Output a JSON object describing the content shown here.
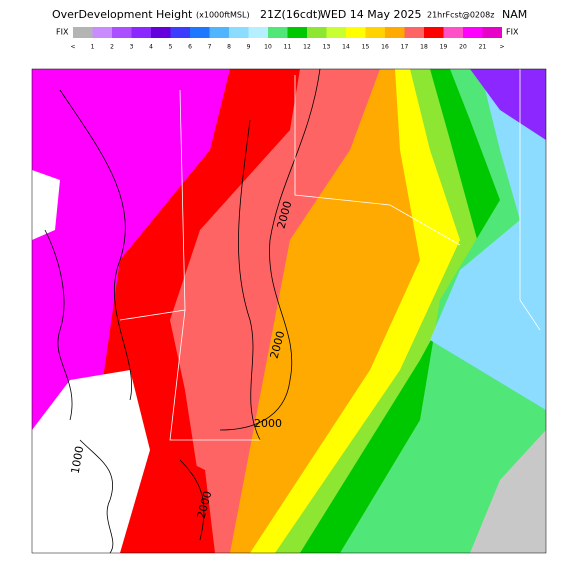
{
  "header": {
    "title": "OverDevelopment Height",
    "units": "(x1000ftMSL)",
    "valid": "21Z(16cdt)",
    "date": "WED 14 May 2025",
    "forecast": "21hrFcst@0208z",
    "model": "NAM"
  },
  "colorbar": {
    "left_label": "FIX",
    "right_label": "FIX",
    "labels": [
      "<",
      "1",
      "2",
      "3",
      "4",
      "5",
      "6",
      "7",
      "8",
      "9",
      "10",
      "11",
      "12",
      "13",
      "14",
      "15",
      "16",
      "17",
      "18",
      "19",
      "20",
      "21",
      ">"
    ],
    "colors": [
      "#b4b4b4",
      "#c88cff",
      "#aa50ff",
      "#8c28ff",
      "#6400dc",
      "#3c3cff",
      "#1e78ff",
      "#50b4ff",
      "#8cdcff",
      "#b4f0ff",
      "#50e678",
      "#00c800",
      "#8ce632",
      "#c8ff32",
      "#ffff00",
      "#ffd200",
      "#ffaa00",
      "#ff6464",
      "#ff0000",
      "#ff50c8",
      "#ff00ff",
      "#e600c8"
    ]
  },
  "contour_labels": [
    "2000",
    "2000",
    "2000",
    "1000",
    "2000"
  ]
}
